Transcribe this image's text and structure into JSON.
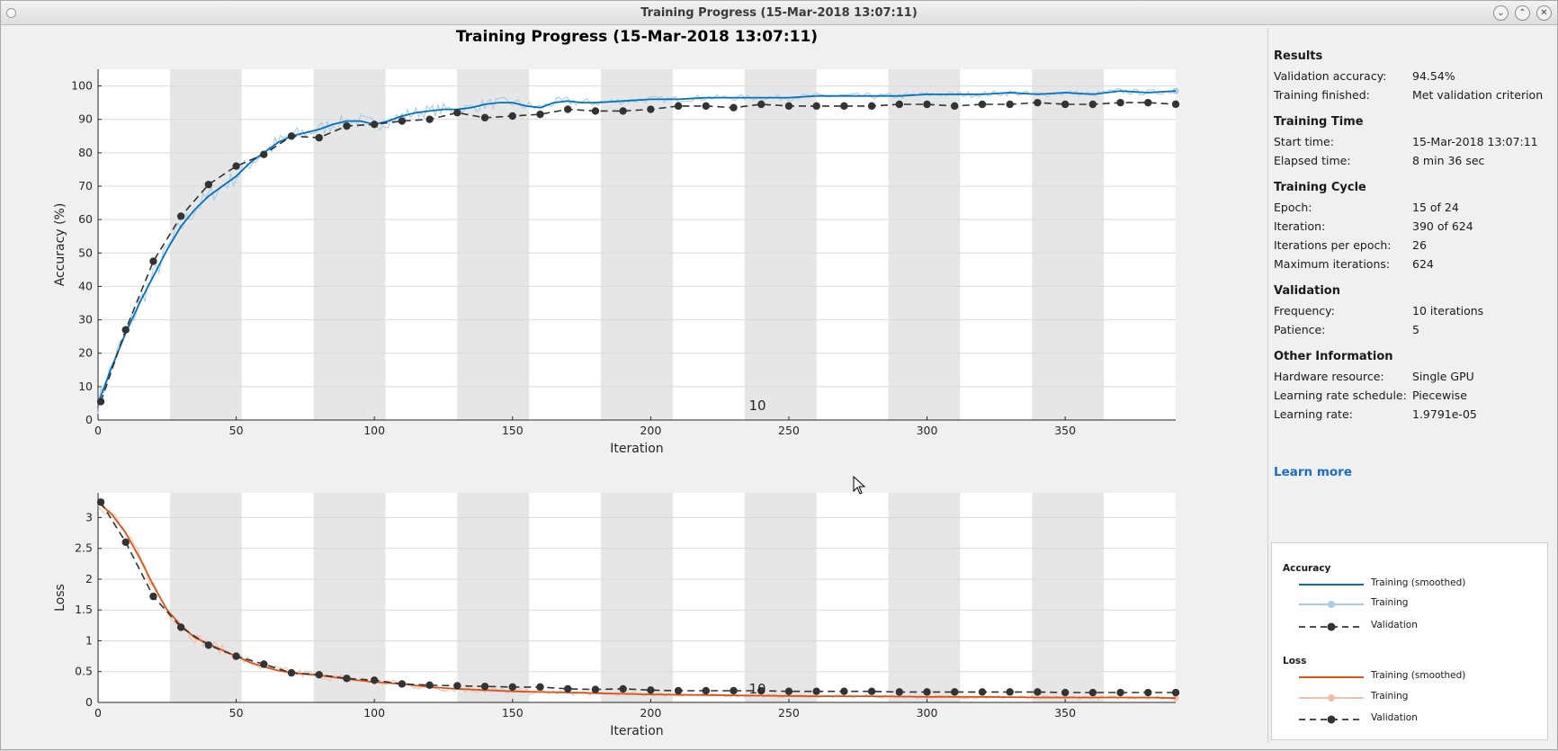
{
  "window": {
    "title": "Training Progress (15-Mar-2018 13:07:11)",
    "controls": {
      "minimize_icon": "chevron-down-icon",
      "maximize_icon": "chevron-up-icon",
      "close_icon": "close-icon"
    }
  },
  "plot_title": "Training Progress (15-Mar-2018 13:07:11)",
  "accuracy_plot": {
    "ylabel": "Accuracy (%)",
    "xlabel": "Iteration",
    "yticks": [
      "0",
      "10",
      "20",
      "30",
      "40",
      "50",
      "60",
      "70",
      "80",
      "90",
      "100"
    ],
    "xticks": [
      "0",
      "50",
      "100",
      "150",
      "200",
      "250",
      "300",
      "350"
    ],
    "epoch_annotation": "10"
  },
  "loss_plot": {
    "ylabel": "Loss",
    "xlabel": "Iteration",
    "yticks": [
      "0",
      "0.5",
      "1",
      "1.5",
      "2",
      "2.5",
      "3"
    ],
    "xticks": [
      "0",
      "50",
      "100",
      "150",
      "200",
      "250",
      "300",
      "350"
    ],
    "epoch_annotation": "10"
  },
  "chart_data": [
    {
      "type": "line",
      "title": "Training Progress (15-Mar-2018 13:07:11)",
      "xlabel": "Iteration",
      "ylabel": "Accuracy (%)",
      "xlim": [
        0,
        390
      ],
      "ylim": [
        0,
        105
      ],
      "grid": true,
      "epoch_bands_per": 26,
      "series": [
        {
          "name": "Validation",
          "color": "#333333",
          "style": "dashed-markers",
          "x": [
            1,
            10,
            20,
            30,
            40,
            50,
            60,
            70,
            80,
            90,
            100,
            110,
            120,
            130,
            140,
            150,
            160,
            170,
            180,
            190,
            200,
            210,
            220,
            230,
            240,
            250,
            260,
            270,
            280,
            290,
            300,
            310,
            320,
            330,
            340,
            350,
            360,
            370,
            380,
            390
          ],
          "y": [
            5.5,
            27,
            47.5,
            61,
            70.5,
            76,
            79.5,
            85,
            84.5,
            88,
            88.5,
            89.5,
            90,
            92,
            90.5,
            91,
            91.5,
            93,
            92.5,
            92.5,
            93,
            94,
            94,
            93.5,
            94.5,
            94,
            94,
            94,
            94,
            94.5,
            94.5,
            94,
            94.5,
            94.5,
            95,
            94.5,
            94.5,
            95,
            95,
            94.54
          ]
        },
        {
          "name": "Training (smoothed)",
          "color": "#0072bd",
          "x": [
            0,
            5,
            10,
            15,
            20,
            25,
            30,
            35,
            40,
            45,
            50,
            55,
            60,
            65,
            70,
            75,
            80,
            85,
            90,
            95,
            100,
            105,
            110,
            115,
            120,
            125,
            130,
            135,
            140,
            145,
            150,
            155,
            160,
            165,
            170,
            175,
            180,
            190,
            200,
            210,
            220,
            230,
            240,
            250,
            260,
            270,
            280,
            290,
            300,
            310,
            320,
            330,
            340,
            350,
            360,
            370,
            380,
            390
          ],
          "y": [
            5,
            16,
            26,
            35,
            43,
            51,
            58,
            63,
            67,
            70,
            73,
            77,
            80,
            83,
            85,
            86,
            87,
            88.5,
            89.5,
            89.5,
            88.5,
            89.5,
            91,
            92,
            92.5,
            93,
            93,
            93.5,
            94.5,
            95,
            95,
            94,
            93.5,
            95,
            95.5,
            95,
            95,
            95.5,
            96,
            96,
            96.5,
            96.5,
            96.5,
            96.5,
            97,
            97,
            97,
            97,
            97.5,
            97.5,
            97.5,
            98,
            97.5,
            98,
            97.5,
            98.5,
            98,
            98.5
          ]
        }
      ]
    },
    {
      "type": "line",
      "xlabel": "Iteration",
      "ylabel": "Loss",
      "xlim": [
        0,
        390
      ],
      "ylim": [
        0,
        3.4
      ],
      "grid": true,
      "epoch_bands_per": 26,
      "series": [
        {
          "name": "Validation",
          "color": "#333333",
          "style": "dashed-markers",
          "x": [
            1,
            10,
            20,
            30,
            40,
            50,
            60,
            70,
            80,
            90,
            100,
            110,
            120,
            130,
            140,
            150,
            160,
            170,
            180,
            190,
            200,
            210,
            220,
            230,
            240,
            250,
            260,
            270,
            280,
            290,
            300,
            310,
            320,
            330,
            340,
            350,
            360,
            370,
            380,
            390
          ],
          "y": [
            3.25,
            2.6,
            1.72,
            1.22,
            0.93,
            0.75,
            0.62,
            0.48,
            0.45,
            0.39,
            0.36,
            0.3,
            0.28,
            0.27,
            0.26,
            0.25,
            0.25,
            0.22,
            0.21,
            0.22,
            0.2,
            0.19,
            0.19,
            0.19,
            0.19,
            0.18,
            0.18,
            0.18,
            0.18,
            0.17,
            0.17,
            0.17,
            0.17,
            0.17,
            0.17,
            0.16,
            0.16,
            0.16,
            0.16,
            0.16
          ]
        },
        {
          "name": "Training (smoothed)",
          "color": "#d95319",
          "x": [
            0,
            5,
            10,
            15,
            20,
            25,
            30,
            35,
            40,
            45,
            50,
            55,
            60,
            65,
            70,
            80,
            90,
            100,
            110,
            120,
            130,
            140,
            150,
            160,
            170,
            180,
            200,
            220,
            240,
            260,
            280,
            300,
            320,
            340,
            360,
            380,
            390
          ],
          "y": [
            3.25,
            3.05,
            2.75,
            2.35,
            1.9,
            1.5,
            1.25,
            1.05,
            0.95,
            0.85,
            0.75,
            0.65,
            0.58,
            0.52,
            0.48,
            0.44,
            0.38,
            0.33,
            0.3,
            0.25,
            0.22,
            0.2,
            0.18,
            0.17,
            0.16,
            0.15,
            0.13,
            0.12,
            0.11,
            0.1,
            0.1,
            0.09,
            0.09,
            0.08,
            0.08,
            0.08,
            0.07
          ]
        }
      ]
    }
  ],
  "sidepanel": {
    "results": {
      "heading": "Results",
      "rows": [
        {
          "key": "Validation accuracy:",
          "value": "94.54%"
        },
        {
          "key": "Training finished:",
          "value": "Met validation criterion"
        }
      ]
    },
    "training_time": {
      "heading": "Training Time",
      "rows": [
        {
          "key": "Start time:",
          "value": "15-Mar-2018 13:07:11"
        },
        {
          "key": "Elapsed time:",
          "value": "8 min 36 sec"
        }
      ]
    },
    "training_cycle": {
      "heading": "Training Cycle",
      "rows": [
        {
          "key": "Epoch:",
          "value": "15 of 24"
        },
        {
          "key": "Iteration:",
          "value": "390 of 624"
        },
        {
          "key": "Iterations per epoch:",
          "value": "26"
        },
        {
          "key": "Maximum iterations:",
          "value": "624"
        }
      ]
    },
    "validation": {
      "heading": "Validation",
      "rows": [
        {
          "key": "Frequency:",
          "value": "10 iterations"
        },
        {
          "key": "Patience:",
          "value": "5"
        }
      ]
    },
    "other_information": {
      "heading": "Other Information",
      "rows": [
        {
          "key": "Hardware resource:",
          "value": "Single GPU"
        },
        {
          "key": "Learning rate schedule:",
          "value": "Piecewise"
        },
        {
          "key": "Learning rate:",
          "value": "1.9791e-05"
        }
      ]
    },
    "learn_more": "Learn more"
  },
  "legend": {
    "accuracy_heading": "Accuracy",
    "loss_heading": "Loss",
    "training_smoothed": "Training (smoothed)",
    "training": "Training",
    "validation": "Validation",
    "colors": {
      "accuracy_smoothed": "#0072bd",
      "accuracy_raw": "#a8cbe8",
      "loss_smoothed": "#d95319",
      "loss_raw": "#f1c0a8",
      "validation": "#333333"
    }
  }
}
